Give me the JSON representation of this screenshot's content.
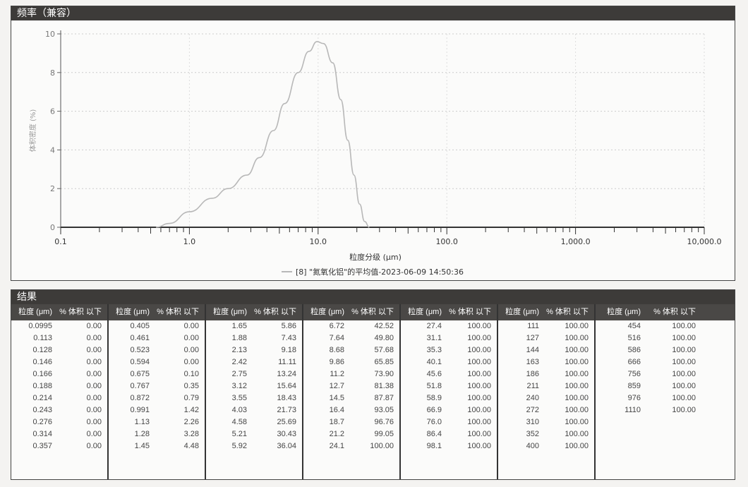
{
  "chart_panel": {
    "title": "频率（兼容）"
  },
  "chart_data": {
    "type": "line",
    "xlabel": "粒度分级 (μm)",
    "ylabel": "体积密度 (%)",
    "xscale": "log",
    "xlim": [
      0.1,
      10000
    ],
    "ylim": [
      0,
      10
    ],
    "xticks": [
      "0.1",
      "1.0",
      "10.0",
      "100.0",
      "1,000.0",
      "10,000.0"
    ],
    "yticks": [
      "0",
      "2",
      "4",
      "6",
      "8",
      "10"
    ],
    "grid": true,
    "legend_position": "bottom-center",
    "series": [
      {
        "name": "[8] \"氮氧化铝\"的平均值-2023-06-09 14:50:36",
        "color": "#b8b8b8",
        "x": [
          0.55,
          0.7,
          1.0,
          1.5,
          2.0,
          2.8,
          3.5,
          4.5,
          5.5,
          7.0,
          8.5,
          9.8,
          11,
          13,
          15,
          17,
          19,
          21,
          23,
          25
        ],
        "y": [
          0,
          0.2,
          0.8,
          1.5,
          2.0,
          2.7,
          3.6,
          5.0,
          6.4,
          8.0,
          9.1,
          9.6,
          9.5,
          8.5,
          6.6,
          4.5,
          2.7,
          1.2,
          0.3,
          0
        ]
      }
    ]
  },
  "results": {
    "title": "结果",
    "header_size": "粒度 (μm)",
    "header_vol": "% 体积 以下",
    "columns": [
      [
        [
          "0.0995",
          "0.00"
        ],
        [
          "0.113",
          "0.00"
        ],
        [
          "0.128",
          "0.00"
        ],
        [
          "0.146",
          "0.00"
        ],
        [
          "0.166",
          "0.00"
        ],
        [
          "0.188",
          "0.00"
        ],
        [
          "0.214",
          "0.00"
        ],
        [
          "0.243",
          "0.00"
        ],
        [
          "0.276",
          "0.00"
        ],
        [
          "0.314",
          "0.00"
        ],
        [
          "0.357",
          "0.00"
        ]
      ],
      [
        [
          "0.405",
          "0.00"
        ],
        [
          "0.461",
          "0.00"
        ],
        [
          "0.523",
          "0.00"
        ],
        [
          "0.594",
          "0.00"
        ],
        [
          "0.675",
          "0.10"
        ],
        [
          "0.767",
          "0.35"
        ],
        [
          "0.872",
          "0.79"
        ],
        [
          "0.991",
          "1.42"
        ],
        [
          "1.13",
          "2.26"
        ],
        [
          "1.28",
          "3.28"
        ],
        [
          "1.45",
          "4.48"
        ]
      ],
      [
        [
          "1.65",
          "5.86"
        ],
        [
          "1.88",
          "7.43"
        ],
        [
          "2.13",
          "9.18"
        ],
        [
          "2.42",
          "11.11"
        ],
        [
          "2.75",
          "13.24"
        ],
        [
          "3.12",
          "15.64"
        ],
        [
          "3.55",
          "18.43"
        ],
        [
          "4.03",
          "21.73"
        ],
        [
          "4.58",
          "25.69"
        ],
        [
          "5.21",
          "30.43"
        ],
        [
          "5.92",
          "36.04"
        ]
      ],
      [
        [
          "6.72",
          "42.52"
        ],
        [
          "7.64",
          "49.80"
        ],
        [
          "8.68",
          "57.68"
        ],
        [
          "9.86",
          "65.85"
        ],
        [
          "11.2",
          "73.90"
        ],
        [
          "12.7",
          "81.38"
        ],
        [
          "14.5",
          "87.87"
        ],
        [
          "16.4",
          "93.05"
        ],
        [
          "18.7",
          "96.76"
        ],
        [
          "21.2",
          "99.05"
        ],
        [
          "24.1",
          "100.00"
        ]
      ],
      [
        [
          "27.4",
          "100.00"
        ],
        [
          "31.1",
          "100.00"
        ],
        [
          "35.3",
          "100.00"
        ],
        [
          "40.1",
          "100.00"
        ],
        [
          "45.6",
          "100.00"
        ],
        [
          "51.8",
          "100.00"
        ],
        [
          "58.9",
          "100.00"
        ],
        [
          "66.9",
          "100.00"
        ],
        [
          "76.0",
          "100.00"
        ],
        [
          "86.4",
          "100.00"
        ],
        [
          "98.1",
          "100.00"
        ]
      ],
      [
        [
          "111",
          "100.00"
        ],
        [
          "127",
          "100.00"
        ],
        [
          "144",
          "100.00"
        ],
        [
          "163",
          "100.00"
        ],
        [
          "186",
          "100.00"
        ],
        [
          "211",
          "100.00"
        ],
        [
          "240",
          "100.00"
        ],
        [
          "272",
          "100.00"
        ],
        [
          "310",
          "100.00"
        ],
        [
          "352",
          "100.00"
        ],
        [
          "400",
          "100.00"
        ]
      ],
      [
        [
          "454",
          "100.00"
        ],
        [
          "516",
          "100.00"
        ],
        [
          "586",
          "100.00"
        ],
        [
          "666",
          "100.00"
        ],
        [
          "756",
          "100.00"
        ],
        [
          "859",
          "100.00"
        ],
        [
          "976",
          "100.00"
        ],
        [
          "1110",
          "100.00"
        ]
      ]
    ]
  }
}
